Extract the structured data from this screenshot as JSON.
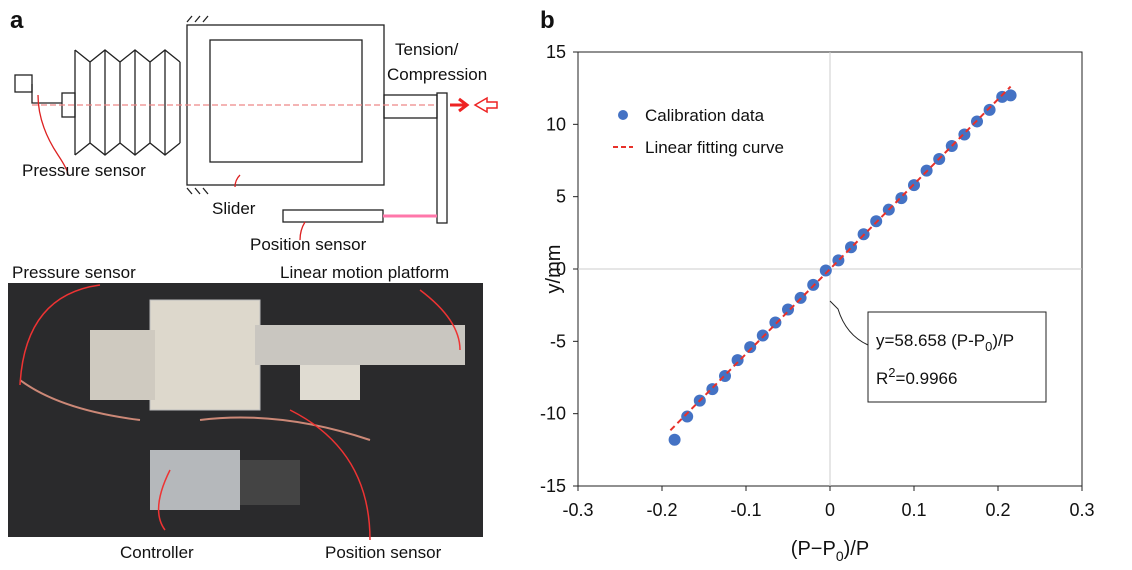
{
  "panel_a": {
    "label": "a",
    "schematic": {
      "tension_compression": [
        "Tension/",
        "Compression"
      ],
      "pressure_sensor": "Pressure sensor",
      "slider": "Slider",
      "position_sensor": "Position sensor"
    },
    "photo": {
      "pressure_sensor": "Pressure sensor",
      "linear_motion_platform": "Linear motion platform",
      "controller": "Controller",
      "position_sensor": "Position sensor"
    }
  },
  "chart_data": {
    "type": "scatter",
    "label": "b",
    "x_label": [
      "(P−P",
      "0",
      ")/P"
    ],
    "y_label": "y/mm",
    "xlim": [
      -0.3,
      0.3
    ],
    "ylim": [
      -15,
      15
    ],
    "xticks": [
      -0.3,
      -0.2,
      -0.1,
      0,
      0.1,
      0.2,
      0.3
    ],
    "yticks": [
      -15,
      -10,
      -5,
      0,
      5,
      10,
      15
    ],
    "zero_lines": true,
    "legend": "upper-left",
    "series": [
      {
        "name": "Calibration data",
        "type": "scatter",
        "color": "#4472c4",
        "x": [
          -0.185,
          -0.17,
          -0.155,
          -0.14,
          -0.125,
          -0.11,
          -0.095,
          -0.08,
          -0.065,
          -0.05,
          -0.035,
          -0.02,
          -0.005,
          0.01,
          0.025,
          0.04,
          0.055,
          0.07,
          0.085,
          0.1,
          0.115,
          0.13,
          0.145,
          0.16,
          0.175,
          0.19,
          0.205,
          0.215
        ],
        "values": [
          -11.8,
          -10.2,
          -9.1,
          -8.3,
          -7.4,
          -6.3,
          -5.4,
          -4.6,
          -3.7,
          -2.8,
          -2.0,
          -1.1,
          -0.1,
          0.6,
          1.5,
          2.4,
          3.3,
          4.1,
          4.9,
          5.8,
          6.8,
          7.6,
          8.5,
          9.3,
          10.2,
          11.0,
          11.9,
          12.0
        ]
      },
      {
        "name": "Linear fitting curve",
        "type": "line",
        "color": "#e8312a",
        "x": [
          -0.19,
          0.215
        ],
        "values": [
          -11.15,
          12.61
        ]
      }
    ],
    "annotation": {
      "equation": [
        "y=58.658 (P-P",
        "0",
        ")/P"
      ],
      "r_squared": [
        "R",
        "2",
        "=0.9966"
      ]
    }
  }
}
